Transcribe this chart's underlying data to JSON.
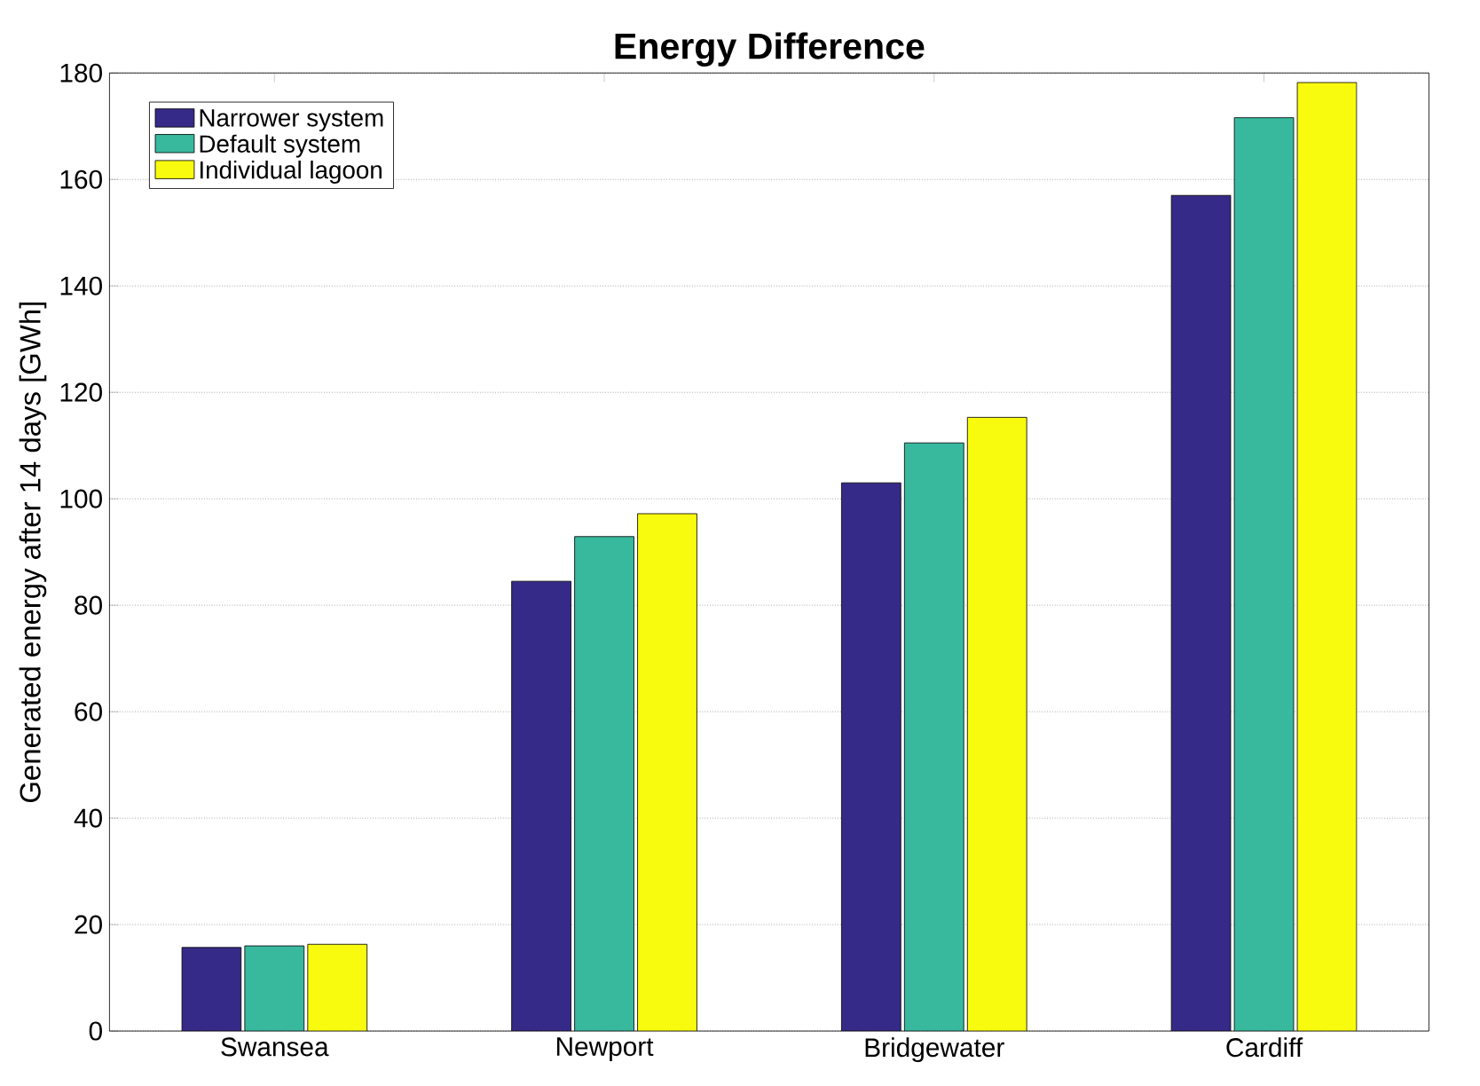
{
  "chart_data": {
    "type": "bar",
    "title": "Energy Difference",
    "ylabel": "Generated energy after 14 days [GWh]",
    "categories": [
      "Swansea",
      "Newport",
      "Bridgewater",
      "Cardiff"
    ],
    "series": [
      {
        "name": "Narrower system",
        "color": "#352a87",
        "values": [
          15.7,
          84.5,
          103.0,
          157.0
        ]
      },
      {
        "name": "Default system",
        "color": "#38b99e",
        "values": [
          16.0,
          92.9,
          110.5,
          171.6
        ]
      },
      {
        "name": "Individual lagoon",
        "color": "#f9fb0e",
        "values": [
          16.3,
          97.2,
          115.3,
          178.2
        ]
      }
    ],
    "ylim": [
      0,
      180
    ],
    "yticks": [
      0,
      20,
      40,
      60,
      80,
      100,
      120,
      140,
      160,
      180
    ],
    "grid": "y",
    "legend": "top left"
  }
}
